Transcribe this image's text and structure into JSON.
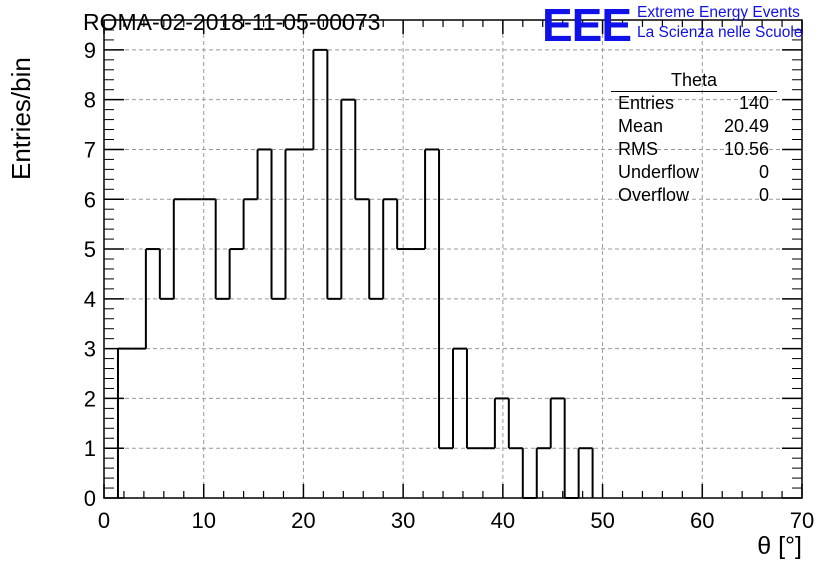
{
  "header": {
    "title": "ROMA-02-2018-11-05-00073",
    "logo_mark": "EEE",
    "logo_line1": "Extreme Energy Events",
    "logo_line2": "La Scienza nelle Scuole"
  },
  "stats": {
    "name": "Theta",
    "rows": [
      {
        "label": "Entries",
        "value": "140"
      },
      {
        "label": "Mean",
        "value": "20.49"
      },
      {
        "label": "RMS",
        "value": "10.56"
      },
      {
        "label": "Underflow",
        "value": "0"
      },
      {
        "label": "Overflow",
        "value": "0"
      }
    ]
  },
  "colors": {
    "line": "#000000",
    "grid": "#999999",
    "logo": "#1010e8"
  },
  "chart_data": {
    "type": "bar",
    "style": "step-histogram",
    "xlabel": "θ [°]",
    "ylabel": "Entries/bin",
    "xlim": [
      0,
      70
    ],
    "ylim": [
      0,
      9.6
    ],
    "grid": true,
    "xticks": [
      0,
      10,
      20,
      30,
      40,
      50,
      60,
      70
    ],
    "yticks": [
      0,
      1,
      2,
      3,
      4,
      5,
      6,
      7,
      8,
      9
    ],
    "bin_edges": [
      1.4,
      2.8,
      4.2,
      5.6,
      7.0,
      8.4,
      9.8,
      11.2,
      12.6,
      14.0,
      15.4,
      16.8,
      18.2,
      19.6,
      21.0,
      22.4,
      23.8,
      25.2,
      26.6,
      28.0,
      29.4,
      30.8,
      32.2,
      33.6,
      35.0,
      36.4,
      37.8,
      39.2,
      40.6,
      42.0,
      43.4,
      44.8,
      46.2,
      47.6,
      49.0
    ],
    "values": [
      3,
      3,
      5,
      4,
      6,
      6,
      6,
      4,
      5,
      6,
      7,
      4,
      7,
      7,
      9,
      4,
      8,
      6,
      4,
      6,
      5,
      5,
      7,
      1,
      3,
      1,
      1,
      2,
      1,
      0,
      1,
      2,
      0,
      1
    ]
  }
}
